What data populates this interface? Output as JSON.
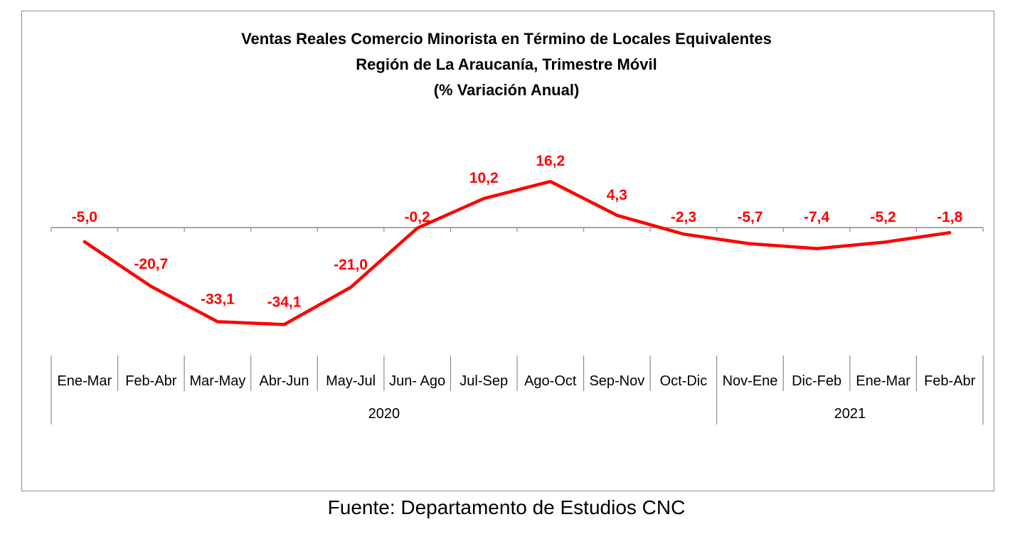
{
  "colors": {
    "series": "#ff0000",
    "axis": "#8c8c8c",
    "text": "#000000"
  },
  "source": "Fuente: Departamento de Estudios CNC",
  "chart_data": {
    "type": "line",
    "title": "Ventas Reales Comercio Minorista  en Término de Locales Equivalentes",
    "subtitle": "Región de La Araucanía, Trimestre Móvil",
    "subtitle2": "(% Variación Anual)",
    "xlabel": "",
    "ylabel": "",
    "grid": false,
    "legend": "none",
    "categories": [
      "Ene-Mar",
      "Feb-Abr",
      "Mar-May",
      "Abr-Jun",
      "May-Jul",
      "Jun- Ago",
      "Jul-Sep",
      "Ago-Oct",
      "Sep-Nov",
      "Oct-Dic",
      "Nov-Ene",
      "Dic-Feb",
      "Ene-Mar",
      "Feb-Abr"
    ],
    "year_groups": [
      {
        "label": "2020",
        "start": 0,
        "end": 9
      },
      {
        "label": "2021",
        "start": 10,
        "end": 13
      }
    ],
    "series": [
      {
        "values": [
          -5.0,
          -20.7,
          -33.1,
          -34.1,
          -21.0,
          -0.2,
          10.2,
          16.2,
          4.3,
          -2.3,
          -5.7,
          -7.4,
          -5.2,
          -1.8
        ],
        "labels": [
          "-5,0",
          "-20,7",
          "-33,1",
          "-34,1",
          "-21,0",
          "-0,2",
          "10,2",
          "16,2",
          "4,3",
          "-2,3",
          "-5,7",
          "-7,4",
          "-5,2",
          "-1,8"
        ]
      }
    ]
  }
}
